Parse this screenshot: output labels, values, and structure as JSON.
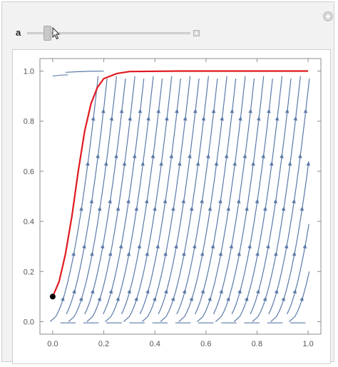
{
  "control": {
    "label": "a",
    "slider_value": 0.12
  },
  "icons": {
    "top_right": "add-circle-icon",
    "slider_expand": "plus-square-icon",
    "cursor": "mouse-pointer-icon"
  },
  "colors": {
    "stream": "#5c7aa8",
    "trajectory": "#e0191f",
    "initial_point": "#000000"
  },
  "chart_data": {
    "type": "stream",
    "xlim": [
      -0.05,
      1.05
    ],
    "ylim": [
      -0.05,
      1.05
    ],
    "xticks": [
      {
        "value": 0.0,
        "label": "0.0"
      },
      {
        "value": 0.2,
        "label": "0.2"
      },
      {
        "value": 0.4,
        "label": "0.4"
      },
      {
        "value": 0.6,
        "label": "0.6"
      },
      {
        "value": 0.8,
        "label": "0.8"
      },
      {
        "value": 1.0,
        "label": "1.0"
      }
    ],
    "yticks": [
      {
        "value": 0.0,
        "label": "0.0"
      },
      {
        "value": 0.2,
        "label": "0.2"
      },
      {
        "value": 0.4,
        "label": "0.4"
      },
      {
        "value": 0.6,
        "label": "0.6"
      },
      {
        "value": 0.8,
        "label": "0.8"
      },
      {
        "value": 1.0,
        "label": "1.0"
      }
    ],
    "initial_point": {
      "x": 0.0,
      "y": 0.1
    },
    "trajectory": [
      {
        "x": 0.0,
        "y": 0.1
      },
      {
        "x": 0.025,
        "y": 0.16
      },
      {
        "x": 0.05,
        "y": 0.27
      },
      {
        "x": 0.075,
        "y": 0.42
      },
      {
        "x": 0.1,
        "y": 0.6
      },
      {
        "x": 0.125,
        "y": 0.76
      },
      {
        "x": 0.15,
        "y": 0.87
      },
      {
        "x": 0.175,
        "y": 0.935
      },
      {
        "x": 0.2,
        "y": 0.97
      },
      {
        "x": 0.25,
        "y": 0.99
      },
      {
        "x": 0.3,
        "y": 0.998
      },
      {
        "x": 0.5,
        "y": 1.0
      },
      {
        "x": 0.8,
        "y": 1.0
      },
      {
        "x": 1.0,
        "y": 1.0
      }
    ],
    "grid": false,
    "frame": true
  }
}
